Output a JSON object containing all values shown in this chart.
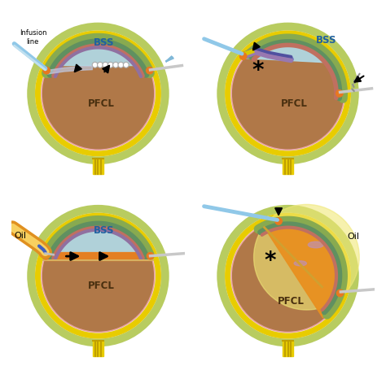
{
  "bg_color": "#ffffff",
  "pfcl_color": "#b07848",
  "bss_color": "#b0dcea",
  "outer_green_color": "#b8cc60",
  "yellow_ring_color": "#e8cc00",
  "pink_ring_color": "#e8a0a0",
  "port_color": "#e87820",
  "oil_color_bright": "#f0d040",
  "oil_color_orange": "#e88020",
  "sclera_color": "#f0e8d8",
  "choroid_green": "#88aa50",
  "choroid_teal": "#609060",
  "retina_pink": "#d07858",
  "labels": {
    "infusion_line": "Infusion\nline",
    "bss": "BSS",
    "pfcl": "PFCL",
    "oil": "Oil"
  }
}
